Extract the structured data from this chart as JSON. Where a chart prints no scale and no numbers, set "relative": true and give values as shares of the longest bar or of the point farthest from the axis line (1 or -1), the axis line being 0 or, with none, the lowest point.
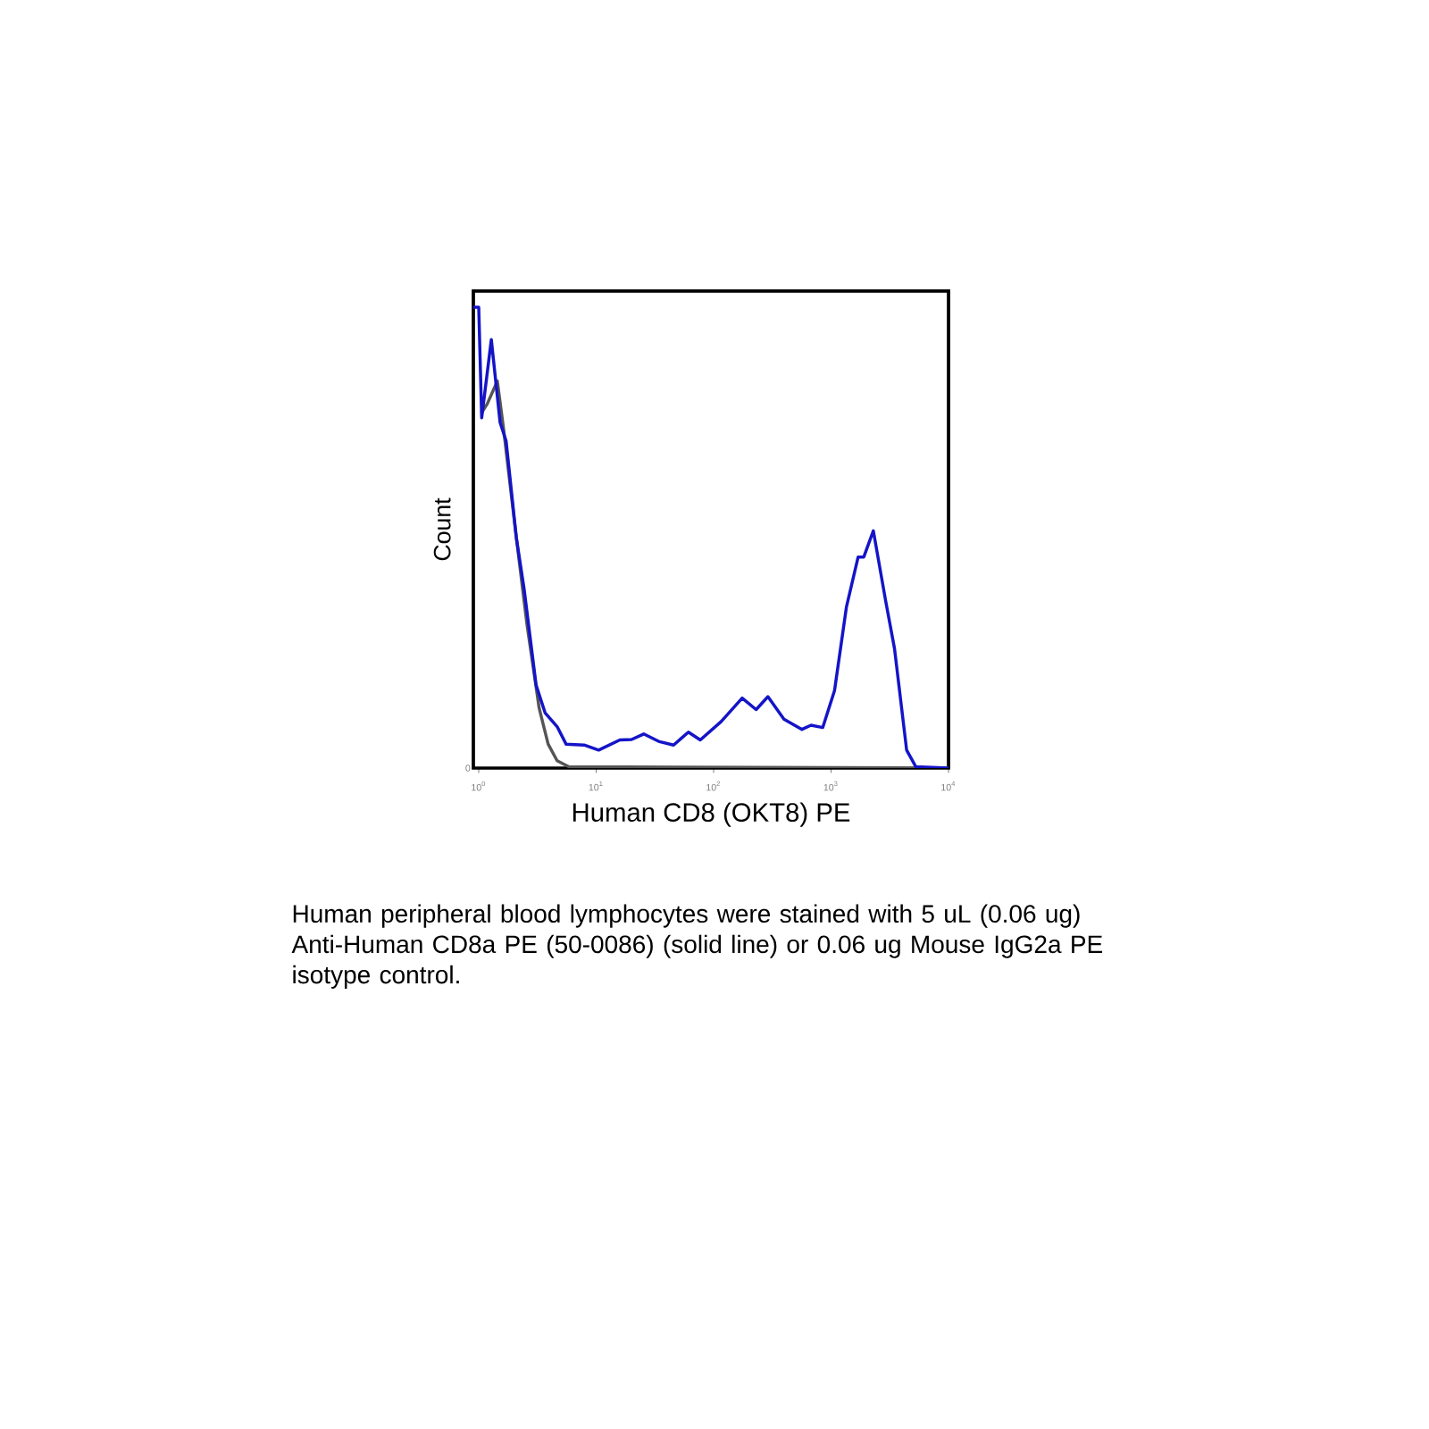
{
  "chart_data": {
    "type": "line",
    "xlabel": "Human CD8 (OKT8) PE",
    "ylabel": "Count",
    "log": "x",
    "relative": true,
    "xlim": [
      0.9,
      10000
    ],
    "xticks": [
      {
        "value": 1,
        "label": "10$^{0}$"
      },
      {
        "value": 10,
        "label": "10$^{1}$"
      },
      {
        "value": 100,
        "label": "10$^{2}$"
      },
      {
        "value": 1000,
        "label": "10$^{3}$"
      },
      {
        "value": 10000,
        "label": "10$^{4}$"
      }
    ],
    "series": [
      {
        "color": "#555555",
        "x": [
          1.05,
          1.18,
          1.44,
          1.62,
          2.09,
          2.58,
          3.27,
          3.9,
          4.65,
          5.85,
          10000
        ],
        "values": [
          0.77,
          0.79,
          0.84,
          0.74,
          0.5,
          0.31,
          0.13,
          0.052,
          0.016,
          0.003,
          0
        ]
      },
      {
        "color": "#1414c8",
        "x": [
          0.9,
          1.0,
          1.06,
          1.28,
          1.52,
          1.71,
          2.09,
          2.43,
          3.08,
          3.67,
          4.65,
          5.54,
          7.9,
          10.5,
          15.9,
          20,
          25.4,
          34,
          45.6,
          61,
          77,
          116,
          175,
          230,
          290,
          397,
          565,
          675,
          850,
          1070,
          1350,
          1700,
          1900,
          2290,
          2920,
          3470,
          4400,
          5260,
          10000
        ],
        "values": [
          1,
          1,
          0.76,
          0.93,
          0.75,
          0.71,
          0.5,
          0.39,
          0.18,
          0.12,
          0.09,
          0.052,
          0.05,
          0.039,
          0.061,
          0.062,
          0.074,
          0.058,
          0.05,
          0.078,
          0.061,
          0.101,
          0.152,
          0.127,
          0.155,
          0.106,
          0.084,
          0.093,
          0.088,
          0.168,
          0.349,
          0.458,
          0.458,
          0.515,
          0.362,
          0.259,
          0.039,
          0.003,
          0
        ]
      }
    ],
    "annotations": [
      "0",
      "Human peripheral blood lymphocytes were stained with 5 uL (0.06 ug) Anti-Human CD8a PE (50-0086) (solid line) or 0.06 ug Mouse IgG2a PE isotype control."
    ]
  }
}
